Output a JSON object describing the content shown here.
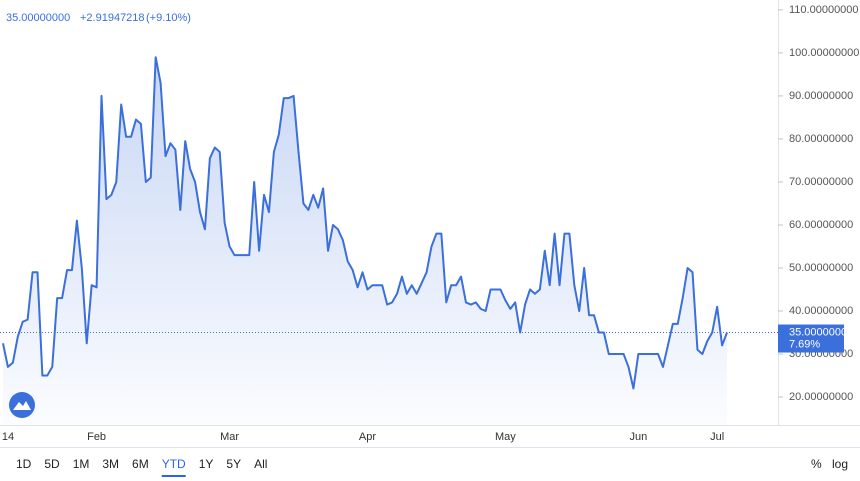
{
  "chart_data": {
    "type": "area",
    "price_label": "35.00000000",
    "price_change": "+2.91947218",
    "price_change_pct": "(+9.10%)",
    "axis_price_label": "35.00000000",
    "axis_pct_label": "7.69%",
    "categories": [
      "14",
      null,
      null,
      null,
      null,
      null,
      null,
      null,
      null,
      null,
      null,
      null,
      null,
      null,
      null,
      null,
      null,
      null,
      null,
      "Feb",
      null,
      null,
      null,
      null,
      null,
      null,
      null,
      null,
      null,
      null,
      null,
      null,
      null,
      null,
      null,
      null,
      null,
      null,
      null,
      null,
      null,
      null,
      null,
      null,
      null,
      null,
      "Mar",
      null,
      null,
      null,
      null,
      null,
      null,
      null,
      null,
      null,
      null,
      null,
      null,
      null,
      null,
      null,
      null,
      null,
      null,
      null,
      null,
      null,
      null,
      null,
      null,
      null,
      null,
      null,
      "Apr",
      null,
      null,
      null,
      null,
      null,
      null,
      null,
      null,
      null,
      null,
      null,
      null,
      null,
      null,
      null,
      null,
      null,
      null,
      null,
      null,
      null,
      null,
      null,
      null,
      null,
      null,
      null,
      "May",
      null,
      null,
      null,
      null,
      null,
      null,
      null,
      null,
      null,
      null,
      null,
      null,
      null,
      null,
      null,
      null,
      null,
      null,
      null,
      null,
      null,
      null,
      null,
      null,
      null,
      null,
      "Jun",
      null,
      null,
      null,
      null,
      null,
      null,
      null,
      null,
      null,
      null,
      null,
      null,
      null,
      null,
      null,
      "Jul",
      null,
      null
    ],
    "series": [
      {
        "color": "#3a6fdc",
        "values": [
          32.5,
          27,
          28,
          34,
          37.5,
          38,
          49,
          49,
          25,
          25,
          27,
          43,
          43,
          49.5,
          49.5,
          61,
          50,
          32.5,
          46,
          45.5,
          90,
          66,
          67,
          70,
          88,
          80.5,
          80.5,
          84.5,
          83.5,
          70,
          71,
          99,
          93,
          76,
          79,
          77.5,
          63.5,
          79.5,
          73,
          70,
          63,
          59,
          75.5,
          78,
          77,
          60.5,
          55,
          53,
          53,
          53,
          53,
          70,
          54,
          67,
          63,
          77,
          81,
          89.5,
          89.5,
          90,
          77,
          65,
          63.5,
          67,
          64,
          68.5,
          54,
          60,
          59,
          56.5,
          51.5,
          49.5,
          45.5,
          49,
          45,
          46,
          46,
          46,
          41.5,
          42,
          44,
          48,
          44,
          46,
          44,
          46.5,
          49,
          55,
          58,
          58,
          42,
          46,
          46,
          48,
          42,
          41.5,
          42,
          40.5,
          40,
          45,
          45,
          45,
          42.5,
          40.5,
          42,
          35,
          41.5,
          45,
          44,
          45,
          54,
          46,
          58,
          46,
          58,
          58,
          46,
          40,
          50,
          39,
          39,
          35,
          35,
          30,
          30,
          30,
          30,
          27,
          22,
          30,
          30,
          30,
          30,
          30,
          27,
          32,
          37,
          37,
          43,
          50,
          49,
          31,
          30,
          33,
          35,
          41,
          32,
          35
        ]
      }
    ],
    "ylim": [
      13.5,
      112.3
    ],
    "yticks": [
      {
        "value": 20,
        "label": "20.00000000"
      },
      {
        "value": 30,
        "label": "30.00000000"
      },
      {
        "value": 40,
        "label": "40.00000000"
      },
      {
        "value": 50,
        "label": "50.00000000"
      },
      {
        "value": 60,
        "label": "60.00000000"
      },
      {
        "value": 70,
        "label": "70.00000000"
      },
      {
        "value": 80,
        "label": "80.00000000"
      },
      {
        "value": 90,
        "label": "90.00000000"
      },
      {
        "value": 100,
        "label": "100.00000000"
      },
      {
        "value": 110,
        "label": "110.00000000"
      }
    ]
  },
  "toolbar": {
    "ranges": [
      "1D",
      "5D",
      "1M",
      "3M",
      "6M",
      "YTD",
      "1Y",
      "5Y",
      "All"
    ],
    "active_range": 5,
    "percent": "%",
    "log": "log"
  }
}
